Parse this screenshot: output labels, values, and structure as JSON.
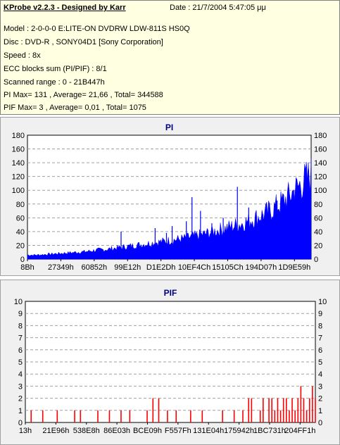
{
  "info": {
    "title": "KProbe v2.2.3 - Designed by Karr",
    "date": "Date : 21/7/2004 5:47:05 μμ",
    "lines": [
      "Model : 2-0-0-0 E:LITE-ON DVDRW LDW-811S   HS0Q",
      "Disc : DVD-R , SONY04D1 [Sony Corporation]",
      "Speed : 8x",
      "ECC blocks sum (PI/PIF) : 8/1",
      "Scanned range : 0 - 21B447h",
      "PI Max= 131 , Average= 21,66 , Total= 344588",
      "PIF Max= 3 , Average= 0,01 , Total= 1075"
    ]
  },
  "colors": {
    "pi": "#0000ff",
    "pif": "#ff0000",
    "plot_bg": "#ffffff",
    "grid": "#a0a0a0"
  },
  "chart_data": [
    {
      "type": "area",
      "title": "PI",
      "ylim": [
        0,
        180
      ],
      "yticks": [
        0,
        20,
        40,
        60,
        80,
        100,
        120,
        140,
        160,
        180
      ],
      "xtick_labels": [
        "8Bh",
        "27349h",
        "60852h",
        "99E12h",
        "D1E2Dh",
        "10EF4Ch",
        "15105Ch",
        "194D07h",
        "1D9E59h"
      ],
      "grid": "dashed horizontal",
      "baseline": [
        6,
        6,
        7,
        8,
        9,
        10,
        11,
        13,
        14,
        16,
        18,
        20,
        22,
        24,
        26,
        28,
        30,
        33,
        36,
        40,
        44,
        48,
        52,
        58,
        64,
        72,
        82,
        95,
        110,
        122
      ],
      "spikes": [
        {
          "pos": 0.33,
          "value": 40
        },
        {
          "pos": 0.45,
          "value": 45
        },
        {
          "pos": 0.49,
          "value": 38
        },
        {
          "pos": 0.51,
          "value": 48
        },
        {
          "pos": 0.56,
          "value": 55
        },
        {
          "pos": 0.58,
          "value": 90
        },
        {
          "pos": 0.61,
          "value": 70
        },
        {
          "pos": 0.65,
          "value": 52
        },
        {
          "pos": 0.69,
          "value": 60
        },
        {
          "pos": 0.74,
          "value": 105
        },
        {
          "pos": 0.78,
          "value": 75
        },
        {
          "pos": 0.83,
          "value": 65
        },
        {
          "pos": 0.88,
          "value": 85
        },
        {
          "pos": 0.94,
          "value": 100
        },
        {
          "pos": 0.99,
          "value": 131
        }
      ]
    },
    {
      "type": "bar",
      "title": "PIF",
      "ylim": [
        0,
        10
      ],
      "yticks": [
        0,
        1,
        2,
        3,
        4,
        5,
        6,
        7,
        8,
        9,
        10
      ],
      "xtick_labels": [
        "13h",
        "21E96h",
        "538E8h",
        "86E03h",
        "BCE09h",
        "F557Fh",
        "131E04h",
        "175942h",
        "1BC731h",
        "204FF1h"
      ],
      "grid": "dashed horizontal",
      "bars": [
        {
          "pos": 0.02,
          "value": 1
        },
        {
          "pos": 0.06,
          "value": 1
        },
        {
          "pos": 0.11,
          "value": 1
        },
        {
          "pos": 0.17,
          "value": 1
        },
        {
          "pos": 0.19,
          "value": 1
        },
        {
          "pos": 0.25,
          "value": 1
        },
        {
          "pos": 0.29,
          "value": 1
        },
        {
          "pos": 0.33,
          "value": 1
        },
        {
          "pos": 0.36,
          "value": 1
        },
        {
          "pos": 0.42,
          "value": 1
        },
        {
          "pos": 0.44,
          "value": 2
        },
        {
          "pos": 0.46,
          "value": 2
        },
        {
          "pos": 0.49,
          "value": 1
        },
        {
          "pos": 0.52,
          "value": 1
        },
        {
          "pos": 0.57,
          "value": 1
        },
        {
          "pos": 0.61,
          "value": 1
        },
        {
          "pos": 0.68,
          "value": 1
        },
        {
          "pos": 0.72,
          "value": 1
        },
        {
          "pos": 0.75,
          "value": 1
        },
        {
          "pos": 0.77,
          "value": 2
        },
        {
          "pos": 0.78,
          "value": 2
        },
        {
          "pos": 0.81,
          "value": 1
        },
        {
          "pos": 0.82,
          "value": 2
        },
        {
          "pos": 0.84,
          "value": 2
        },
        {
          "pos": 0.85,
          "value": 2
        },
        {
          "pos": 0.86,
          "value": 1
        },
        {
          "pos": 0.87,
          "value": 2
        },
        {
          "pos": 0.88,
          "value": 1
        },
        {
          "pos": 0.89,
          "value": 2
        },
        {
          "pos": 0.9,
          "value": 2
        },
        {
          "pos": 0.91,
          "value": 1
        },
        {
          "pos": 0.92,
          "value": 2
        },
        {
          "pos": 0.93,
          "value": 1
        },
        {
          "pos": 0.94,
          "value": 2
        },
        {
          "pos": 0.95,
          "value": 3
        },
        {
          "pos": 0.96,
          "value": 2
        },
        {
          "pos": 0.97,
          "value": 1
        },
        {
          "pos": 0.98,
          "value": 2
        },
        {
          "pos": 0.99,
          "value": 3
        },
        {
          "pos": 1.0,
          "value": 2
        }
      ]
    }
  ]
}
